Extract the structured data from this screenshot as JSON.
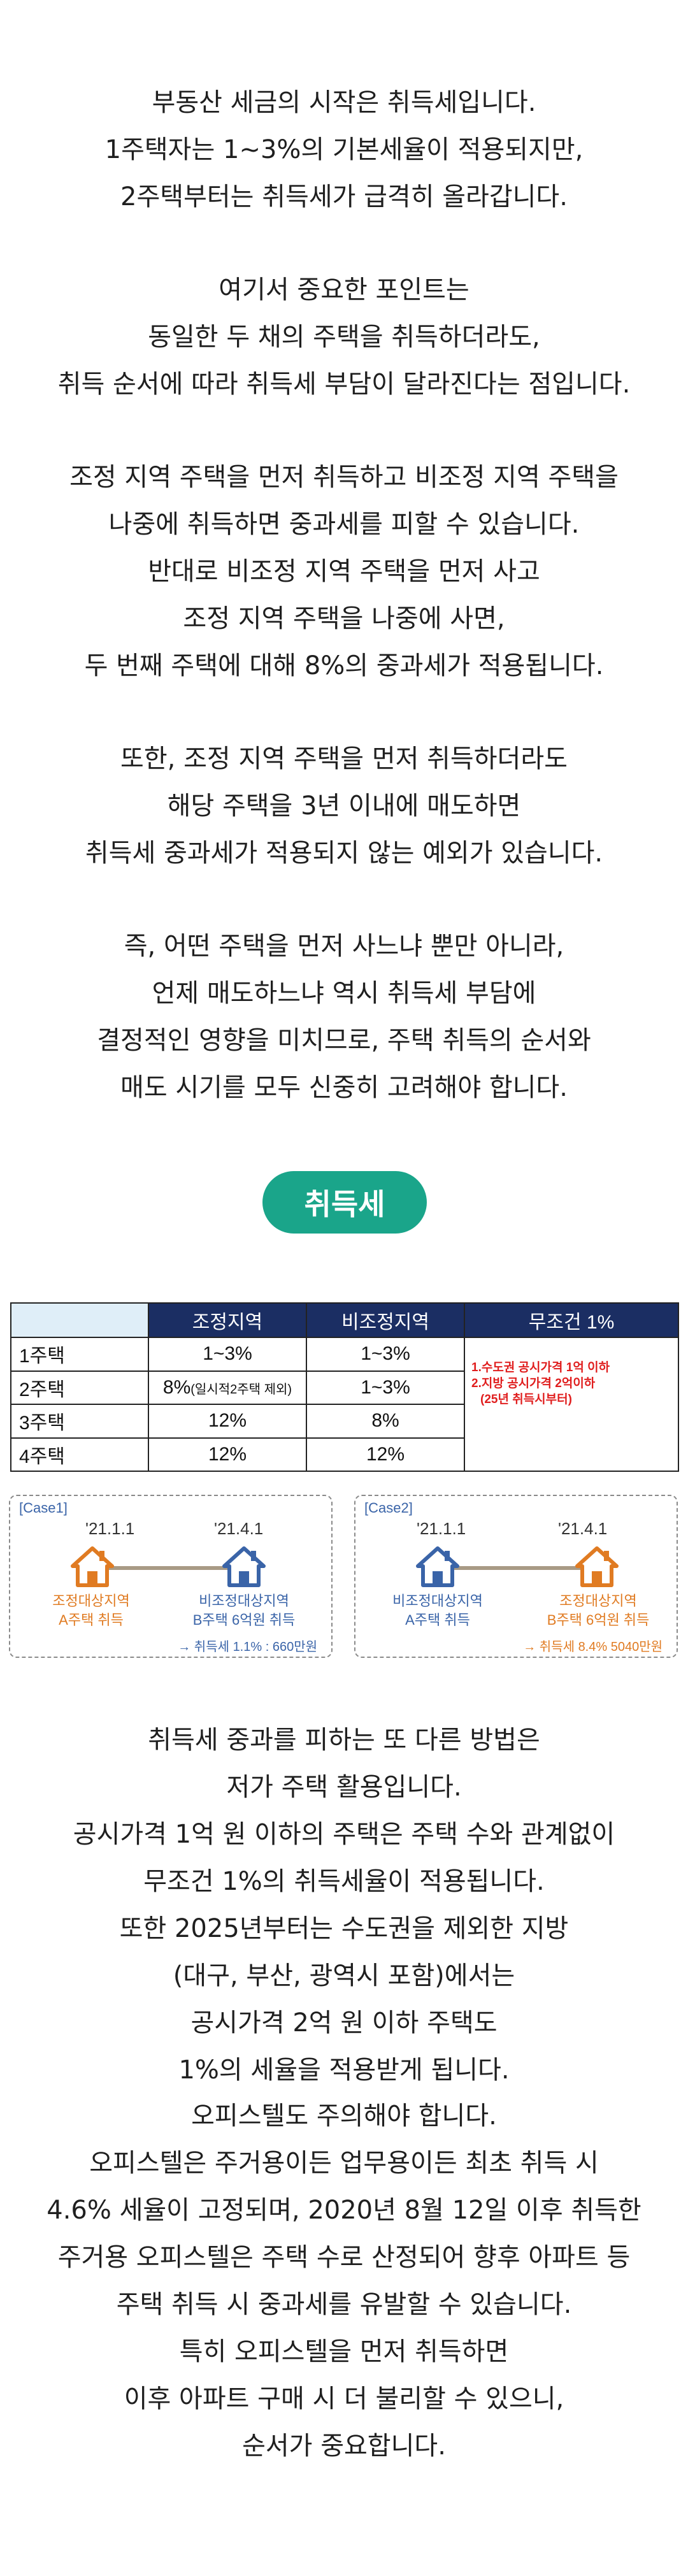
{
  "intro_paragraphs": [
    [
      "부동산 세금의 시작은 취득세입니다.",
      "1주택자는 1~3%의 기본세율이 적용되지만,",
      "2주택부터는 취득세가 급격히 올라갑니다."
    ],
    [
      "여기서 중요한 포인트는",
      "동일한 두 채의 주택을 취득하더라도,",
      "취득 순서에 따라 취득세 부담이 달라진다는 점입니다."
    ],
    [
      "조정 지역 주택을 먼저 취득하고 비조정 지역 주택을",
      "나중에 취득하면 중과세를 피할 수 있습니다.",
      "반대로 비조정 지역 주택을 먼저 사고",
      "조정 지역 주택을 나중에 사면,",
      "두 번째 주택에 대해 8%의 중과세가 적용됩니다."
    ],
    [
      "또한, 조정 지역 주택을 먼저 취득하더라도",
      "해당 주택을 3년 이내에 매도하면",
      "취득세 중과세가 적용되지 않는 예외가 있습니다."
    ],
    [
      "즉, 어떤 주택을 먼저 사느냐 뿐만 아니라,",
      "언제 매도하느냐 역시 취득세 부담에",
      "결정적인 영향을 미치므로, 주택 취득의 순서와",
      "매도 시기를 모두 신중히 고려해야 합니다."
    ]
  ],
  "section_pill": "취득세",
  "table": {
    "headers": [
      "",
      "조정지역",
      "비조정지역",
      "무조건 1%"
    ],
    "rows": [
      {
        "label": "1주택",
        "adjusted": "1~3%",
        "non_adjusted": "1~3%"
      },
      {
        "label": "2주택",
        "adjusted": "8%",
        "adjusted_note": "(일시적2주택 제외)",
        "non_adjusted": "1~3%"
      },
      {
        "label": "3주택",
        "adjusted": "12%",
        "non_adjusted": "8%"
      },
      {
        "label": "4주택",
        "adjusted": "12%",
        "non_adjusted": "12%"
      }
    ],
    "condition_lines": [
      "1.수도권 공시가격 1억 이하",
      "2.지방 공시가격 2억이하",
      "(25년 취득시부터)"
    ]
  },
  "cases": [
    {
      "title": "[Case1]",
      "date1": "'21.1.1",
      "date2": "'21.4.1",
      "first_label": [
        "조정대상지역",
        "A주택 취득"
      ],
      "second_label": [
        "비조정대상지역",
        "B주택 6억원 취득"
      ],
      "note": "→ 취득세 1.1% : 660만원",
      "first_color": "#e07b22",
      "second_color": "#3a64a8"
    },
    {
      "title": "[Case2]",
      "date1": "'21.1.1",
      "date2": "'21.4.1",
      "first_label": [
        "비조정대상지역",
        "A주택 취득"
      ],
      "second_label": [
        "조정대상지역",
        "B주택 6억원 취득"
      ],
      "note": "→ 취득세 8.4% 5040만원",
      "first_color": "#3a64a8",
      "second_color": "#e07b22"
    }
  ],
  "outro_paragraphs": [
    [
      "취득세 중과를 피하는 또 다른 방법은",
      "저가 주택 활용입니다.",
      "공시가격 1억 원 이하의 주택은 주택 수와 관계없이",
      "무조건 1%의 취득세율이 적용됩니다.",
      "또한 2025년부터는 수도권을 제외한 지방",
      "(대구, 부산, 광역시 포함)에서는",
      "공시가격 2억 원 이하 주택도",
      "1%의 세율을 적용받게 됩니다."
    ],
    [
      "오피스텔도 주의해야 합니다.",
      "오피스텔은 주거용이든 업무용이든 최초 취득 시",
      "4.6% 세율이 고정되며, 2020년 8월 12일 이후 취득한",
      "주거용 오피스텔은 주택 수로 산정되어 향후 아파트 등",
      "주택 취득 시 중과세를 유발할 수 있습니다.",
      "특히 오피스텔을 먼저 취득하면",
      "이후 아파트 구매 시 더 불리할 수 있으니,",
      "순서가 중요합니다."
    ]
  ]
}
